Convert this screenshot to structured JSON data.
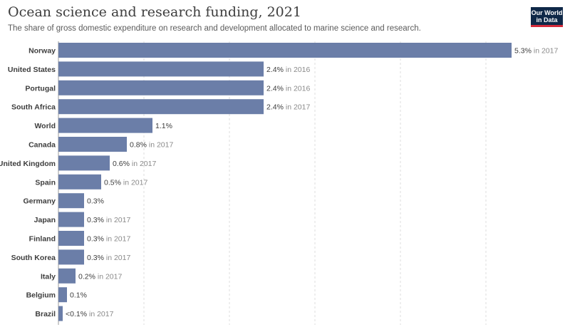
{
  "header": {
    "title": "Ocean science and research funding, 2021",
    "subtitle": "The share of gross domestic expenditure on research and development allocated to marine science and research.",
    "logo_line1": "Our World",
    "logo_line2": "in Data"
  },
  "colors": {
    "bar": "#6b7ea8",
    "logo_bg": "#0f2848",
    "logo_accent": "#d42a3a"
  },
  "chart_data": {
    "type": "bar",
    "orientation": "horizontal",
    "title": "Ocean science and research funding, 2021",
    "subtitle": "The share of gross domestic expenditure on research and development allocated to marine science and research.",
    "unit": "%",
    "xlim": [
      0,
      5.5
    ],
    "grid": true,
    "categories": [
      "Norway",
      "United States",
      "Portugal",
      "South Africa",
      "World",
      "Canada",
      "United Kingdom",
      "Spain",
      "Germany",
      "Japan",
      "Finland",
      "South Korea",
      "Italy",
      "Belgium",
      "Brazil"
    ],
    "values": [
      5.3,
      2.4,
      2.4,
      2.4,
      1.1,
      0.8,
      0.6,
      0.5,
      0.3,
      0.3,
      0.3,
      0.3,
      0.2,
      0.1,
      0.05
    ],
    "value_labels": [
      "5.3%",
      "2.4%",
      "2.4%",
      "2.4%",
      "1.1%",
      "0.8%",
      "0.6%",
      "0.5%",
      "0.3%",
      "0.3%",
      "0.3%",
      "0.3%",
      "0.2%",
      "0.1%",
      "<0.1%"
    ],
    "year_labels": [
      "in 2017",
      "in 2016",
      "in 2016",
      "in 2017",
      "",
      "in 2017",
      "in 2017",
      "in 2017",
      "",
      "in 2017",
      "in 2017",
      "in 2017",
      "in 2017",
      "",
      "in 2017"
    ]
  }
}
